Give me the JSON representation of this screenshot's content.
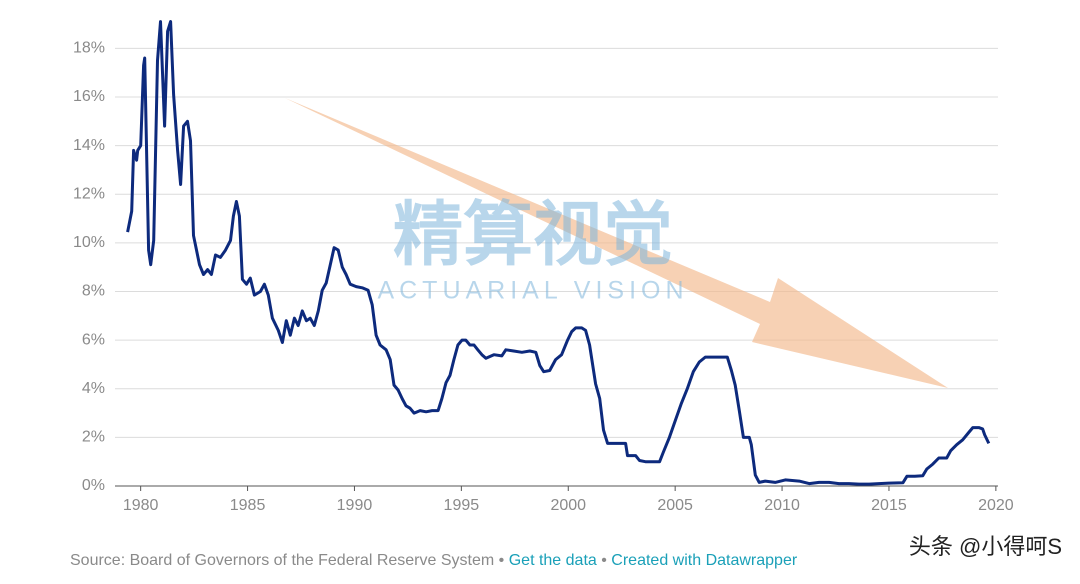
{
  "chart_data": {
    "type": "line",
    "x": [
      1979.39,
      1979.58,
      1979.67,
      1979.81,
      1979.86,
      1980.0,
      1980.14,
      1980.19,
      1980.37,
      1980.47,
      1980.61,
      1980.79,
      1980.93,
      1981.12,
      1981.26,
      1981.4,
      1981.54,
      1981.73,
      1981.87,
      1982.01,
      1982.19,
      1982.33,
      1982.47,
      1982.61,
      1982.75,
      1982.94,
      1983.13,
      1983.31,
      1983.5,
      1983.73,
      1983.97,
      1984.2,
      1984.34,
      1984.48,
      1984.62,
      1984.76,
      1984.95,
      1985.13,
      1985.32,
      1985.6,
      1985.79,
      1985.97,
      1986.16,
      1986.44,
      1986.63,
      1986.81,
      1987.0,
      1987.19,
      1987.37,
      1987.56,
      1987.75,
      1987.93,
      1988.12,
      1988.31,
      1988.49,
      1988.68,
      1988.87,
      1989.05,
      1989.24,
      1989.43,
      1989.61,
      1989.8,
      1990.08,
      1990.36,
      1990.64,
      1990.83,
      1991.01,
      1991.2,
      1991.48,
      1991.67,
      1991.85,
      1992.04,
      1992.23,
      1992.41,
      1992.6,
      1992.79,
      1993.07,
      1993.35,
      1993.63,
      1993.91,
      1994.09,
      1994.28,
      1994.47,
      1994.65,
      1994.84,
      1995.03,
      1995.21,
      1995.4,
      1995.59,
      1995.77,
      1995.96,
      1996.15,
      1996.52,
      1996.89,
      1997.08,
      1997.45,
      1997.83,
      1998.2,
      1998.48,
      1998.67,
      1998.85,
      1999.13,
      1999.41,
      1999.69,
      1999.97,
      2000.16,
      2000.35,
      2000.63,
      2000.81,
      2001.0,
      2001.28,
      2001.47,
      2001.65,
      2001.84,
      2002.12,
      2002.4,
      2002.68,
      2002.77,
      2003.15,
      2003.33,
      2003.61,
      2003.99,
      2004.27,
      2004.45,
      2004.73,
      2005.01,
      2005.29,
      2005.57,
      2005.85,
      2006.13,
      2006.41,
      2006.78,
      2007.16,
      2007.44,
      2007.63,
      2007.81,
      2008.0,
      2008.19,
      2008.47,
      2008.56,
      2008.75,
      2008.93,
      2009.21,
      2009.68,
      2010.15,
      2010.8,
      2011.27,
      2011.73,
      2012.2,
      2012.66,
      2013.13,
      2013.6,
      2014.07,
      2014.53,
      2015.0,
      2015.65,
      2015.84,
      2016.21,
      2016.58,
      2016.77,
      2017.05,
      2017.33,
      2017.7,
      2017.89,
      2018.17,
      2018.45,
      2018.73,
      2018.92,
      2019.2,
      2019.38,
      2019.48,
      2019.67
    ],
    "values": [
      10.44,
      11.3,
      13.8,
      13.4,
      13.8,
      14.0,
      17.3,
      17.6,
      9.7,
      9.1,
      10.1,
      17.5,
      19.1,
      14.8,
      18.7,
      19.1,
      16.1,
      13.8,
      12.4,
      14.8,
      15.0,
      14.2,
      10.3,
      9.7,
      9.1,
      8.7,
      8.9,
      8.7,
      9.5,
      9.4,
      9.7,
      10.1,
      11.1,
      11.7,
      11.1,
      8.5,
      8.3,
      8.55,
      7.85,
      8.0,
      8.3,
      7.85,
      6.9,
      6.4,
      5.9,
      6.8,
      6.2,
      6.9,
      6.6,
      7.2,
      6.8,
      6.9,
      6.6,
      7.2,
      8.05,
      8.35,
      9.1,
      9.8,
      9.7,
      9.0,
      8.7,
      8.3,
      8.2,
      8.15,
      8.05,
      7.45,
      6.2,
      5.8,
      5.6,
      5.2,
      4.15,
      3.95,
      3.6,
      3.3,
      3.2,
      3.0,
      3.1,
      3.05,
      3.1,
      3.1,
      3.6,
      4.25,
      4.55,
      5.2,
      5.8,
      6.0,
      6.0,
      5.8,
      5.8,
      5.6,
      5.4,
      5.25,
      5.4,
      5.35,
      5.6,
      5.55,
      5.5,
      5.55,
      5.5,
      4.95,
      4.7,
      4.75,
      5.2,
      5.4,
      6.0,
      6.35,
      6.5,
      6.5,
      6.4,
      5.8,
      4.2,
      3.6,
      2.3,
      1.75,
      1.75,
      1.75,
      1.75,
      1.25,
      1.25,
      1.05,
      1.0,
      1.0,
      1.0,
      1.4,
      2.0,
      2.7,
      3.4,
      4.0,
      4.7,
      5.1,
      5.3,
      5.3,
      5.3,
      5.3,
      4.75,
      4.15,
      3.1,
      2.0,
      2.0,
      1.7,
      0.45,
      0.15,
      0.2,
      0.15,
      0.25,
      0.2,
      0.1,
      0.15,
      0.15,
      0.1,
      0.1,
      0.08,
      0.08,
      0.1,
      0.12,
      0.13,
      0.4,
      0.4,
      0.42,
      0.7,
      0.9,
      1.15,
      1.15,
      1.45,
      1.7,
      1.9,
      2.2,
      2.4,
      2.4,
      2.35,
      2.1,
      1.75
    ],
    "color": "#0d2a7d",
    "xlim": [
      1978.8,
      2020.1
    ],
    "xticks": [
      1980,
      1985,
      1990,
      1995,
      2000,
      2005,
      2010,
      2015,
      2020
    ],
    "ylim": [
      0,
      19
    ],
    "yticks": [
      {
        "value": 0,
        "label": "0%"
      },
      {
        "value": 2,
        "label": "2%"
      },
      {
        "value": 4,
        "label": "4%"
      },
      {
        "value": 6,
        "label": "6%"
      },
      {
        "value": 8,
        "label": "8%"
      },
      {
        "value": 10,
        "label": "10%"
      },
      {
        "value": 12,
        "label": "12%"
      },
      {
        "value": 14,
        "label": "14%"
      },
      {
        "value": 16,
        "label": "16%"
      },
      {
        "value": 18,
        "label": "18%"
      }
    ],
    "grid": true,
    "source": "Source: Board of Governors of the Federal Reserve System",
    "separator": "•",
    "links": [
      "Get the data",
      "Created with Datawrapper"
    ],
    "watermark": "精算视觉",
    "watermark_sub": "ACTUARIAL VISION",
    "credit": "头条 @小得呵S"
  }
}
